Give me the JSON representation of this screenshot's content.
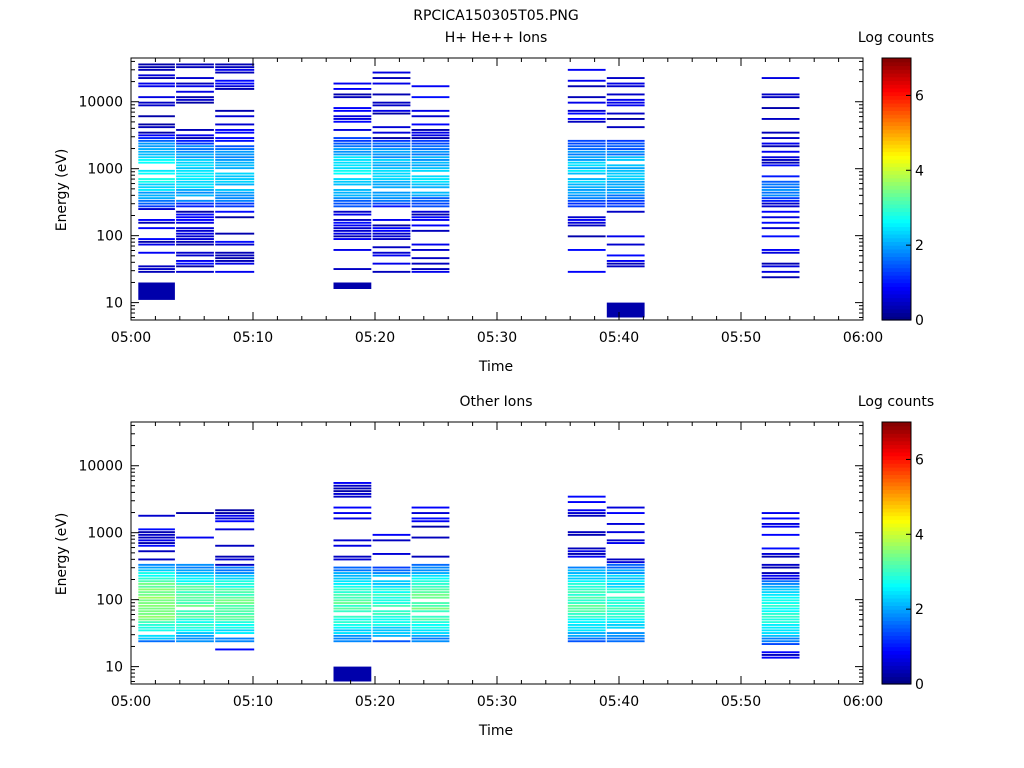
{
  "title": "RPCICA150305T05.PNG",
  "colorbar": {
    "label": "Log counts",
    "ticks": [
      "0",
      "2",
      "4",
      "6"
    ],
    "range": [
      0,
      7
    ]
  },
  "chart_data": [
    {
      "type": "heatmap",
      "title": "H+ He++ Ions",
      "xlabel": "Time",
      "ylabel": "Energy (eV)",
      "y_scale": "log",
      "ylim": [
        5.5,
        45000
      ],
      "xlim": [
        "05:00",
        "06:00"
      ],
      "x_ticks": [
        "05:00",
        "05:10",
        "05:20",
        "05:30",
        "05:40",
        "05:50",
        "06:00"
      ],
      "y_ticks": [
        "10",
        "100",
        "1000",
        "10000"
      ],
      "blocks": [
        {
          "t0": 0.6,
          "t1": 3.6,
          "emin": 28,
          "emax": 40000,
          "core_emin": 250,
          "core_emax": 3000,
          "peak": 2.6
        },
        {
          "t0": 3.7,
          "t1": 6.8,
          "emin": 28,
          "emax": 38000,
          "core_emin": 250,
          "core_emax": 2800,
          "peak": 2.4
        },
        {
          "t0": 6.9,
          "t1": 10.1,
          "emin": 28,
          "emax": 36000,
          "core_emin": 250,
          "core_emax": 2800,
          "peak": 2.3
        },
        {
          "t0": 16.6,
          "t1": 19.7,
          "emin": 28,
          "emax": 20000,
          "core_emin": 250,
          "core_emax": 3000,
          "peak": 2.5
        },
        {
          "t0": 19.8,
          "t1": 22.9,
          "emin": 28,
          "emax": 28000,
          "core_emin": 250,
          "core_emax": 2800,
          "peak": 2.3
        },
        {
          "t0": 23.0,
          "t1": 26.1,
          "emin": 28,
          "emax": 22000,
          "core_emin": 250,
          "core_emax": 2800,
          "peak": 2.3
        },
        {
          "t0": 35.8,
          "t1": 38.9,
          "emin": 28,
          "emax": 40000,
          "core_emin": 250,
          "core_emax": 2800,
          "peak": 2.3
        },
        {
          "t0": 39.0,
          "t1": 42.1,
          "emin": 28,
          "emax": 24000,
          "core_emin": 250,
          "core_emax": 2800,
          "peak": 2.2
        },
        {
          "t0": 51.7,
          "t1": 54.8,
          "emin": 23,
          "emax": 40000,
          "core_emin": 300,
          "core_emax": 800,
          "peak": 1.9
        }
      ],
      "extra_cells": [
        {
          "t0": 0.6,
          "t1": 3.6,
          "emin": 11,
          "emax": 20,
          "value": 0.3
        },
        {
          "t0": 16.6,
          "t1": 19.7,
          "emin": 16,
          "emax": 20,
          "value": 0.3
        },
        {
          "t0": 39.0,
          "t1": 42.1,
          "emin": 6,
          "emax": 10,
          "value": 0.3
        }
      ]
    },
    {
      "type": "heatmap",
      "title": "Other Ions",
      "xlabel": "Time",
      "ylabel": "Energy (eV)",
      "y_scale": "log",
      "ylim": [
        5.5,
        45000
      ],
      "xlim": [
        "05:00",
        "06:00"
      ],
      "x_ticks": [
        "05:00",
        "05:10",
        "05:20",
        "05:30",
        "05:40",
        "05:50",
        "06:00"
      ],
      "y_ticks": [
        "10",
        "100",
        "1000",
        "10000"
      ],
      "blocks": [
        {
          "t0": 0.6,
          "t1": 3.6,
          "emin": 22,
          "emax": 2500,
          "core_emin": 22,
          "core_emax": 350,
          "peak": 3.7
        },
        {
          "t0": 3.7,
          "t1": 6.8,
          "emin": 22,
          "emax": 2300,
          "core_emin": 22,
          "core_emax": 350,
          "peak": 3.3
        },
        {
          "t0": 6.9,
          "t1": 10.1,
          "emin": 17,
          "emax": 2300,
          "core_emin": 22,
          "core_emax": 300,
          "peak": 3.4
        },
        {
          "t0": 16.6,
          "t1": 19.7,
          "emin": 17,
          "emax": 5500,
          "core_emin": 22,
          "core_emax": 300,
          "peak": 3.2
        },
        {
          "t0": 19.8,
          "t1": 22.9,
          "emin": 22,
          "emax": 2300,
          "core_emin": 22,
          "core_emax": 300,
          "peak": 3.0
        },
        {
          "t0": 23.0,
          "t1": 26.1,
          "emin": 22,
          "emax": 2500,
          "core_emin": 22,
          "core_emax": 350,
          "peak": 3.3
        },
        {
          "t0": 35.8,
          "t1": 38.9,
          "emin": 22,
          "emax": 4500,
          "core_emin": 22,
          "core_emax": 350,
          "peak": 3.1
        },
        {
          "t0": 39.0,
          "t1": 42.1,
          "emin": 22,
          "emax": 2400,
          "core_emin": 22,
          "core_emax": 350,
          "peak": 2.9
        },
        {
          "t0": 51.7,
          "t1": 54.8,
          "emin": 11,
          "emax": 2500,
          "core_emin": 20,
          "core_emax": 200,
          "peak": 2.8
        }
      ],
      "extra_cells": [
        {
          "t0": 16.6,
          "t1": 19.7,
          "emin": 6,
          "emax": 10,
          "value": 0.3
        }
      ]
    }
  ]
}
